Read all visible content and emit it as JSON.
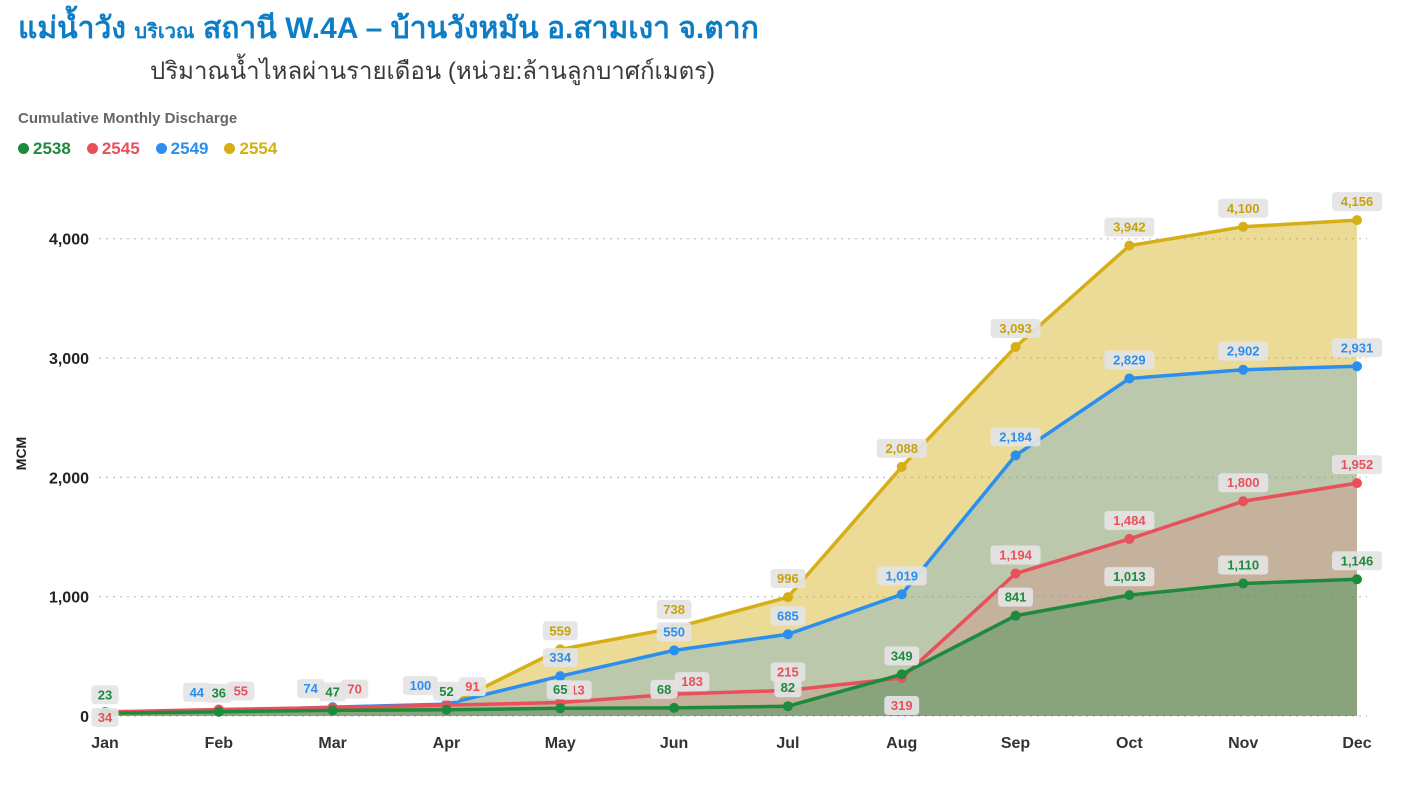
{
  "header": {
    "river": "แม่น้ำวัง",
    "area_word": "บริเวณ",
    "station": "สถานี W.4A – บ้านวังหมัน อ.สามเงา จ.ตาก",
    "subtitle": "ปริมาณน้ำไหลผ่านรายเดือน (หน่วย:ล้านลูกบาศก์เมตร)"
  },
  "chart_label": "Cumulative Monthly Discharge",
  "legend": [
    {
      "label": "2538",
      "color": "#1d8a3e"
    },
    {
      "label": "2545",
      "color": "#e8505b"
    },
    {
      "label": "2549",
      "color": "#2b8ff0"
    },
    {
      "label": "2554",
      "color": "#d4af16"
    }
  ],
  "chart_data": {
    "type": "area",
    "title": "Cumulative Monthly Discharge",
    "xlabel": "",
    "ylabel": "MCM",
    "categories": [
      "Jan",
      "Feb",
      "Mar",
      "Apr",
      "May",
      "Jun",
      "Jul",
      "Aug",
      "Sep",
      "Oct",
      "Nov",
      "Dec"
    ],
    "ylim": [
      0,
      4400
    ],
    "yticks": [
      0,
      1000,
      2000,
      3000,
      4000
    ],
    "grid": "dotted-horizontal",
    "legend_position": "top-left",
    "label_badge_color": "#e4e4e4",
    "series": [
      {
        "name": "2554",
        "color": "#d4af16",
        "label_color": "#c7a30b",
        "fill_opacity": 0.45,
        "values": [
          20,
          40,
          60,
          85,
          559,
          738,
          996,
          2088,
          3093,
          3942,
          4100,
          4156
        ],
        "hide_labels": [
          0,
          1,
          2,
          3
        ]
      },
      {
        "name": "2549",
        "color": "#2b8ff0",
        "fill_opacity": 0.25,
        "values": [
          31,
          44,
          74,
          100,
          334,
          550,
          685,
          1019,
          2184,
          2829,
          2902,
          2931
        ],
        "hide_labels": [
          0
        ],
        "label_offsets": {
          "1": [
            -22,
            0
          ],
          "2": [
            -22,
            0
          ],
          "3": [
            -26,
            0
          ]
        }
      },
      {
        "name": "2545",
        "color": "#e8505b",
        "fill_opacity": 0.18,
        "values": [
          34,
          55,
          70,
          91,
          113,
          183,
          215,
          319,
          1194,
          1484,
          1800,
          1952
        ],
        "label_offsets": {
          "0": [
            0,
            24
          ],
          "1": [
            22,
            0
          ],
          "2": [
            22,
            0
          ],
          "3": [
            26,
            0
          ],
          "4": [
            14,
            6
          ],
          "5": [
            18,
            6
          ],
          "7": [
            0,
            46
          ]
        }
      },
      {
        "name": "2538",
        "color": "#1d8a3e",
        "fill_opacity": 0.35,
        "values": [
          23,
          36,
          47,
          52,
          65,
          68,
          82,
          349,
          841,
          1013,
          1110,
          1146
        ],
        "label_offsets": {
          "5": [
            -10,
            0
          ]
        }
      }
    ]
  }
}
